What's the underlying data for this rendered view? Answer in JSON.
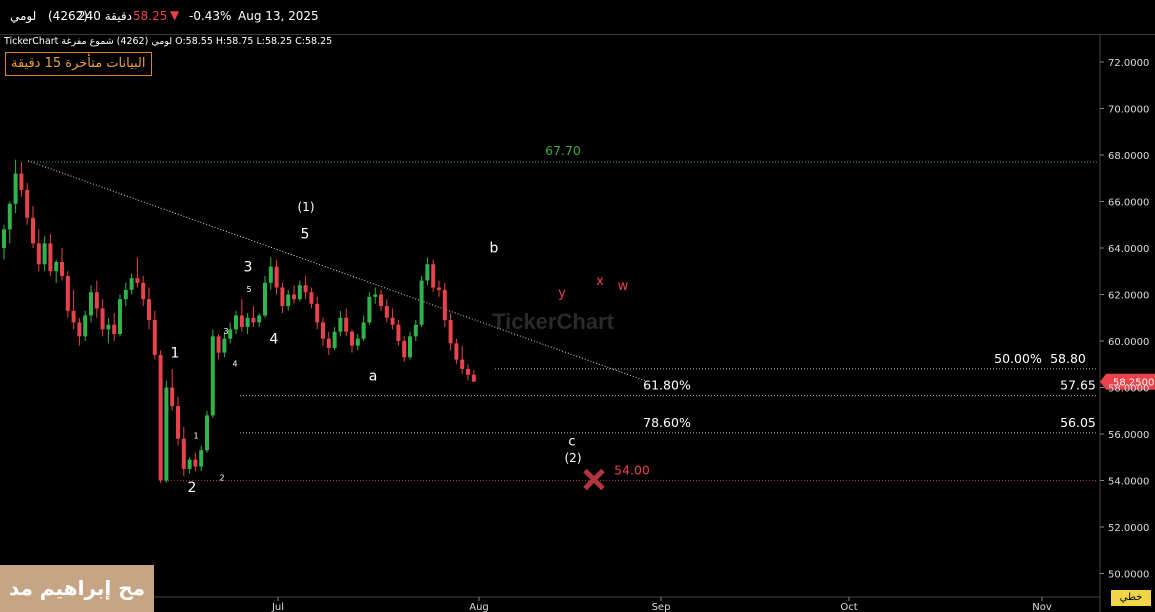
{
  "header": {
    "name": "لومي",
    "code": "(4262)",
    "timeframe": "240 دقيقة",
    "price": "58.25",
    "change_pct": "-0.43%",
    "date": "Aug 13, 2025"
  },
  "legend": {
    "line": "TickerChart لومي (4262) شموع مفرغة  O:58.55  H:58.75  L:58.25  C:58.25"
  },
  "delay_notice": "البيانات متأخرة 15 دقيقة",
  "watermark_text": "مح إبراهيم مد",
  "brand_watermark": "TickerChart",
  "linear_button": "خطي",
  "colors": {
    "up": "#2fb34a",
    "down": "#e8434b",
    "fib_red": "#e8434b",
    "green_level": "#3eaa3e",
    "price_tag": "#e8434b"
  },
  "chart_data": {
    "type": "candlestick",
    "y_axis": {
      "min": 49,
      "max": 73,
      "ticks": [
        "72.0000",
        "70.0000",
        "68.0000",
        "66.0000",
        "64.0000",
        "62.0000",
        "60.0000",
        "58.0000",
        "56.0000",
        "54.0000",
        "52.0000",
        "50.0000"
      ],
      "tick_values": [
        72,
        70,
        68,
        66,
        64,
        62,
        60,
        58,
        56,
        54,
        52,
        50
      ]
    },
    "x_axis": {
      "ticks": [
        "Jul",
        "Aug",
        "Sep",
        "Oct",
        "Nov"
      ]
    },
    "last_price": {
      "value": 58.25,
      "label": "58.2500"
    },
    "candles": [
      [
        64,
        65,
        63.5,
        64.8
      ],
      [
        64.8,
        66,
        64.2,
        65.9
      ],
      [
        65.9,
        67.8,
        65.5,
        67.2
      ],
      [
        67.2,
        67.7,
        66.2,
        66.5
      ],
      [
        66.5,
        66.8,
        65,
        65.3
      ],
      [
        65.3,
        65.8,
        64,
        64.2
      ],
      [
        64.2,
        64.8,
        63,
        63.3
      ],
      [
        63.3,
        64.5,
        63,
        64.2
      ],
      [
        64.2,
        64.6,
        62.8,
        63
      ],
      [
        63,
        63.5,
        62.5,
        63.4
      ],
      [
        63.4,
        64,
        62.6,
        62.8
      ],
      [
        62.8,
        63,
        61,
        61.3
      ],
      [
        61.3,
        62.2,
        60.5,
        60.8
      ],
      [
        60.8,
        61,
        59.8,
        60.2
      ],
      [
        60.2,
        61.3,
        60,
        61.1
      ],
      [
        61.1,
        62.4,
        60.8,
        62.1
      ],
      [
        62.1,
        62.6,
        61,
        61.4
      ],
      [
        61.4,
        61.8,
        60.2,
        60.5
      ],
      [
        60.5,
        61,
        59.9,
        60.7
      ],
      [
        60.7,
        61.2,
        60,
        60.3
      ],
      [
        60.3,
        62,
        60.2,
        61.8
      ],
      [
        61.8,
        62.5,
        61.5,
        62.2
      ],
      [
        62.2,
        62.9,
        62,
        62.7
      ],
      [
        62.7,
        63.6,
        62.3,
        62.5
      ],
      [
        62.5,
        62.8,
        61.5,
        61.8
      ],
      [
        61.8,
        62.3,
        60.5,
        60.9
      ],
      [
        60.9,
        61.3,
        59.2,
        59.4
      ],
      [
        59.4,
        59.6,
        53.9,
        54
      ],
      [
        54,
        58.3,
        53.9,
        58
      ],
      [
        58,
        58.8,
        57,
        57.2
      ],
      [
        57.2,
        57.6,
        55.5,
        55.8
      ],
      [
        55.8,
        56.3,
        54.2,
        54.5
      ],
      [
        54.5,
        55,
        54.3,
        54.9
      ],
      [
        54.9,
        55.2,
        54.4,
        54.6
      ],
      [
        54.6,
        55.5,
        54.4,
        55.3
      ],
      [
        55.3,
        57,
        55.2,
        56.8
      ],
      [
        56.8,
        60.5,
        56.7,
        60.2
      ],
      [
        60.2,
        60.3,
        59.2,
        59.5
      ],
      [
        59.5,
        60.4,
        59.3,
        60.1
      ],
      [
        60.1,
        60.8,
        59.9,
        60.5
      ],
      [
        60.5,
        61.3,
        60.3,
        61.1
      ],
      [
        61.1,
        61.8,
        60.4,
        60.6
      ],
      [
        60.6,
        61.2,
        60.3,
        61
      ],
      [
        61,
        61.5,
        60.6,
        60.8
      ],
      [
        60.8,
        61.2,
        60.6,
        61.1
      ],
      [
        61.1,
        62.8,
        61,
        62.5
      ],
      [
        62.5,
        63.6,
        62.2,
        63.2
      ],
      [
        63.2,
        63.5,
        62,
        62.3
      ],
      [
        62.3,
        62.5,
        61.2,
        61.5
      ],
      [
        61.5,
        62.2,
        61.3,
        62
      ],
      [
        62,
        62.4,
        61.6,
        61.8
      ],
      [
        61.8,
        62.6,
        61.7,
        62.4
      ],
      [
        62.4,
        62.8,
        61.8,
        62.1
      ],
      [
        62.1,
        62.3,
        61.4,
        61.6
      ],
      [
        61.6,
        61.9,
        60.5,
        60.8
      ],
      [
        60.8,
        61,
        59.8,
        60.1
      ],
      [
        60.1,
        60.4,
        59.4,
        59.7
      ],
      [
        59.7,
        60.6,
        59.6,
        60.4
      ],
      [
        60.4,
        61.3,
        60.2,
        61
      ],
      [
        61,
        61.4,
        60.2,
        60.4
      ],
      [
        60.4,
        60.5,
        59.5,
        59.8
      ],
      [
        59.8,
        60.3,
        59.6,
        60.1
      ],
      [
        60.1,
        61.1,
        60,
        60.8
      ],
      [
        60.8,
        62.1,
        60.7,
        61.9
      ],
      [
        61.9,
        62.3,
        61.6,
        62
      ],
      [
        62,
        62.2,
        61.3,
        61.5
      ],
      [
        61.5,
        61.8,
        60.8,
        61
      ],
      [
        61,
        61.4,
        60.5,
        60.7
      ],
      [
        60.7,
        60.9,
        59.8,
        60
      ],
      [
        60,
        60.2,
        59.1,
        59.3
      ],
      [
        59.3,
        60.4,
        59.2,
        60.2
      ],
      [
        60.2,
        60.9,
        60,
        60.7
      ],
      [
        60.7,
        62.8,
        60.6,
        62.6
      ],
      [
        62.6,
        63.6,
        62.4,
        63.3
      ],
      [
        63.3,
        63.5,
        62.1,
        62.3
      ],
      [
        62.3,
        62.6,
        61.9,
        62.2
      ],
      [
        62.2,
        62.5,
        60.6,
        60.9
      ],
      [
        60.9,
        61.2,
        59.6,
        59.9
      ],
      [
        59.9,
        60.1,
        59,
        59.2
      ],
      [
        59.2,
        59.8,
        58.6,
        58.8
      ],
      [
        58.8,
        59,
        58.3,
        58.55
      ],
      [
        58.55,
        58.75,
        58.25,
        58.25
      ]
    ],
    "levels": [
      {
        "label": "67.70",
        "value": 67.7,
        "style": "green"
      },
      {
        "label_pct": "50.00%",
        "label": "58.80",
        "value": 58.8
      },
      {
        "label_pct": "61.80%",
        "label": "57.65",
        "value": 57.65
      },
      {
        "label_pct": "78.60%",
        "label": "56.05",
        "value": 56.05
      },
      {
        "label": "54.00",
        "value": 54.0,
        "style": "red"
      }
    ],
    "trendline": {
      "from": [
        0,
        67.75
      ],
      "to": [
        90,
        58.3
      ]
    },
    "wave_labels": [
      {
        "text": "1",
        "i": 28,
        "v": 59.3,
        "color": "white",
        "size": 14
      },
      {
        "text": "2",
        "i": 30,
        "v": 53.5,
        "color": "white",
        "size": 14
      },
      {
        "text": "1",
        "i": 32,
        "v": 55.8,
        "color": "white",
        "size": 8
      },
      {
        "text": "2",
        "i": 36,
        "v": 54.0,
        "color": "white",
        "size": 8
      },
      {
        "text": "3",
        "i": 37,
        "v": 60.3,
        "color": "white",
        "size": 8
      },
      {
        "text": "4",
        "i": 38,
        "v": 58.9,
        "color": "white",
        "size": 8
      },
      {
        "text": "5",
        "i": 40,
        "v": 62.1,
        "color": "white",
        "size": 8
      },
      {
        "text": "3",
        "i": 40,
        "v": 63.0,
        "color": "white",
        "size": 14
      },
      {
        "text": "4",
        "i": 44,
        "v": 59.9,
        "color": "white",
        "size": 14
      },
      {
        "text": "5",
        "i": 49,
        "v": 64.4,
        "color": "white",
        "size": 14
      },
      {
        "text": "(1)",
        "i": 49,
        "v": 65.6,
        "color": "white",
        "size": 12
      },
      {
        "text": "a",
        "i": 61,
        "v": 58.3,
        "color": "white",
        "size": 14
      },
      {
        "text": "b",
        "i": 81,
        "v": 63.8,
        "color": "white",
        "size": 14
      },
      {
        "text": "y",
        "i": 92,
        "v": 61.9,
        "color": "red",
        "size": 13
      },
      {
        "text": "x",
        "i": 98,
        "v": 62.4,
        "color": "red",
        "size": 13
      },
      {
        "text": "w",
        "i": 102,
        "v": 62.2,
        "color": "red",
        "size": 13
      },
      {
        "text": "c",
        "i": 94,
        "v": 55.5,
        "color": "white",
        "size": 13
      },
      {
        "text": "(2)",
        "i": 94,
        "v": 54.8,
        "color": "white",
        "size": 12
      }
    ],
    "target_marker": {
      "i": 97.5,
      "v": 54.0
    }
  }
}
